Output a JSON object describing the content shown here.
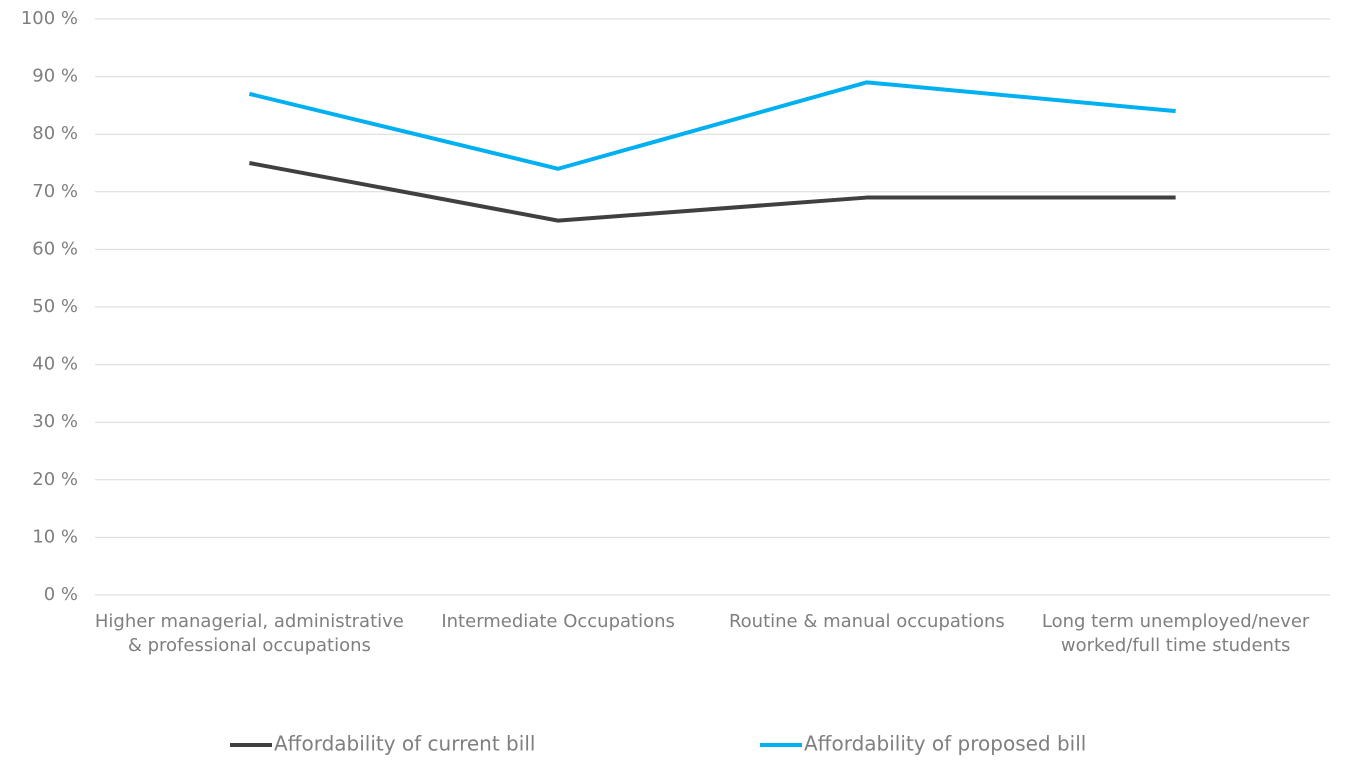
{
  "chart_data": {
    "type": "line",
    "categories": [
      "Higher managerial, administrative & professional occupations",
      "Intermediate Occupations",
      "Routine & manual occupations",
      "Long term unemployed/never worked/full time students"
    ],
    "series": [
      {
        "name": "Affordability of current bill",
        "color": "#404040",
        "values": [
          75,
          65,
          69,
          69
        ]
      },
      {
        "name": "Affordability of proposed bill",
        "color": "#00b0f0",
        "values": [
          87,
          74,
          89,
          84
        ]
      }
    ],
    "ylim": [
      0,
      100
    ],
    "yticks": [
      {
        "value": 0,
        "label": "0 %"
      },
      {
        "value": 10,
        "label": "10 %"
      },
      {
        "value": 20,
        "label": "20 %"
      },
      {
        "value": 30,
        "label": "30 %"
      },
      {
        "value": 40,
        "label": "40 %"
      },
      {
        "value": 50,
        "label": "50 %"
      },
      {
        "value": 60,
        "label": "60 %"
      },
      {
        "value": 70,
        "label": "70 %"
      },
      {
        "value": 80,
        "label": "80 %"
      },
      {
        "value": 90,
        "label": "90 %"
      },
      {
        "value": 100,
        "label": "100 %"
      }
    ],
    "grid": true,
    "legend": "bottom"
  }
}
